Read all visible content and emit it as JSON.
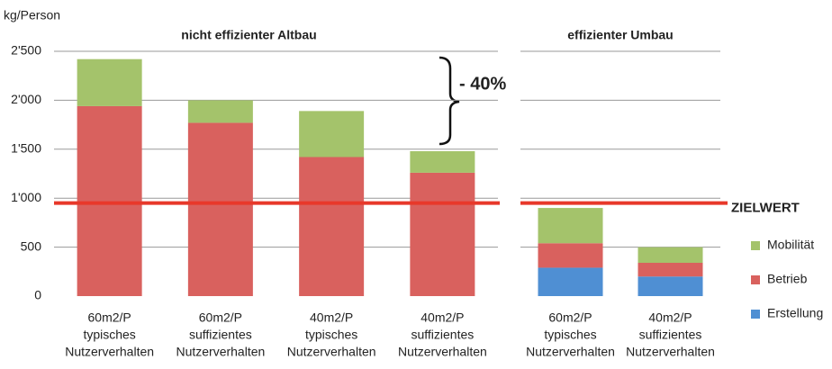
{
  "chart_data": {
    "type": "bar",
    "stacked": true,
    "y_label": "kg/Person",
    "annotation": "- 40%",
    "ylim": [
      0,
      2500
    ],
    "yticks": [
      0,
      500,
      {
        "value": 1000,
        "label": "1'000"
      },
      {
        "value": 1500,
        "label": "1'500"
      },
      {
        "value": 2000,
        "label": "2'000"
      },
      {
        "value": 2500,
        "label": "2'500"
      }
    ],
    "grid": true,
    "panels": [
      {
        "title": "nicht effizienter Altbau",
        "categories": [
          [
            "60m2/P",
            "typisches",
            "Nutzerverhalten"
          ],
          [
            "60m2/P",
            "suffizientes",
            "Nutzerverhalten"
          ],
          [
            "40m2/P",
            "typisches",
            "Nutzerverhalten"
          ],
          [
            "40m2/P",
            "suffizientes",
            "Nutzerverhalten"
          ]
        ]
      },
      {
        "title": "effizienter Umbau",
        "categories": [
          [
            "60m2/P",
            "typisches",
            "Nutzerverhalten"
          ],
          [
            "40m2/P",
            "suffizientes",
            "Nutzerverhalten"
          ]
        ]
      }
    ],
    "series": [
      {
        "name": "Erstellung",
        "color": "#4f8fd3",
        "values": [
          null,
          null,
          null,
          null,
          290,
          200
        ]
      },
      {
        "name": "Betrieb",
        "color": "#d9615e",
        "values": [
          1940,
          1770,
          1420,
          1260,
          250,
          140
        ]
      },
      {
        "name": "Mobilität",
        "color": "#a4c36b",
        "values": [
          480,
          230,
          470,
          220,
          360,
          160
        ]
      }
    ],
    "target": {
      "label": "ZIELWERT",
      "value": 950,
      "color": "#e8382a"
    },
    "legend": "right"
  }
}
